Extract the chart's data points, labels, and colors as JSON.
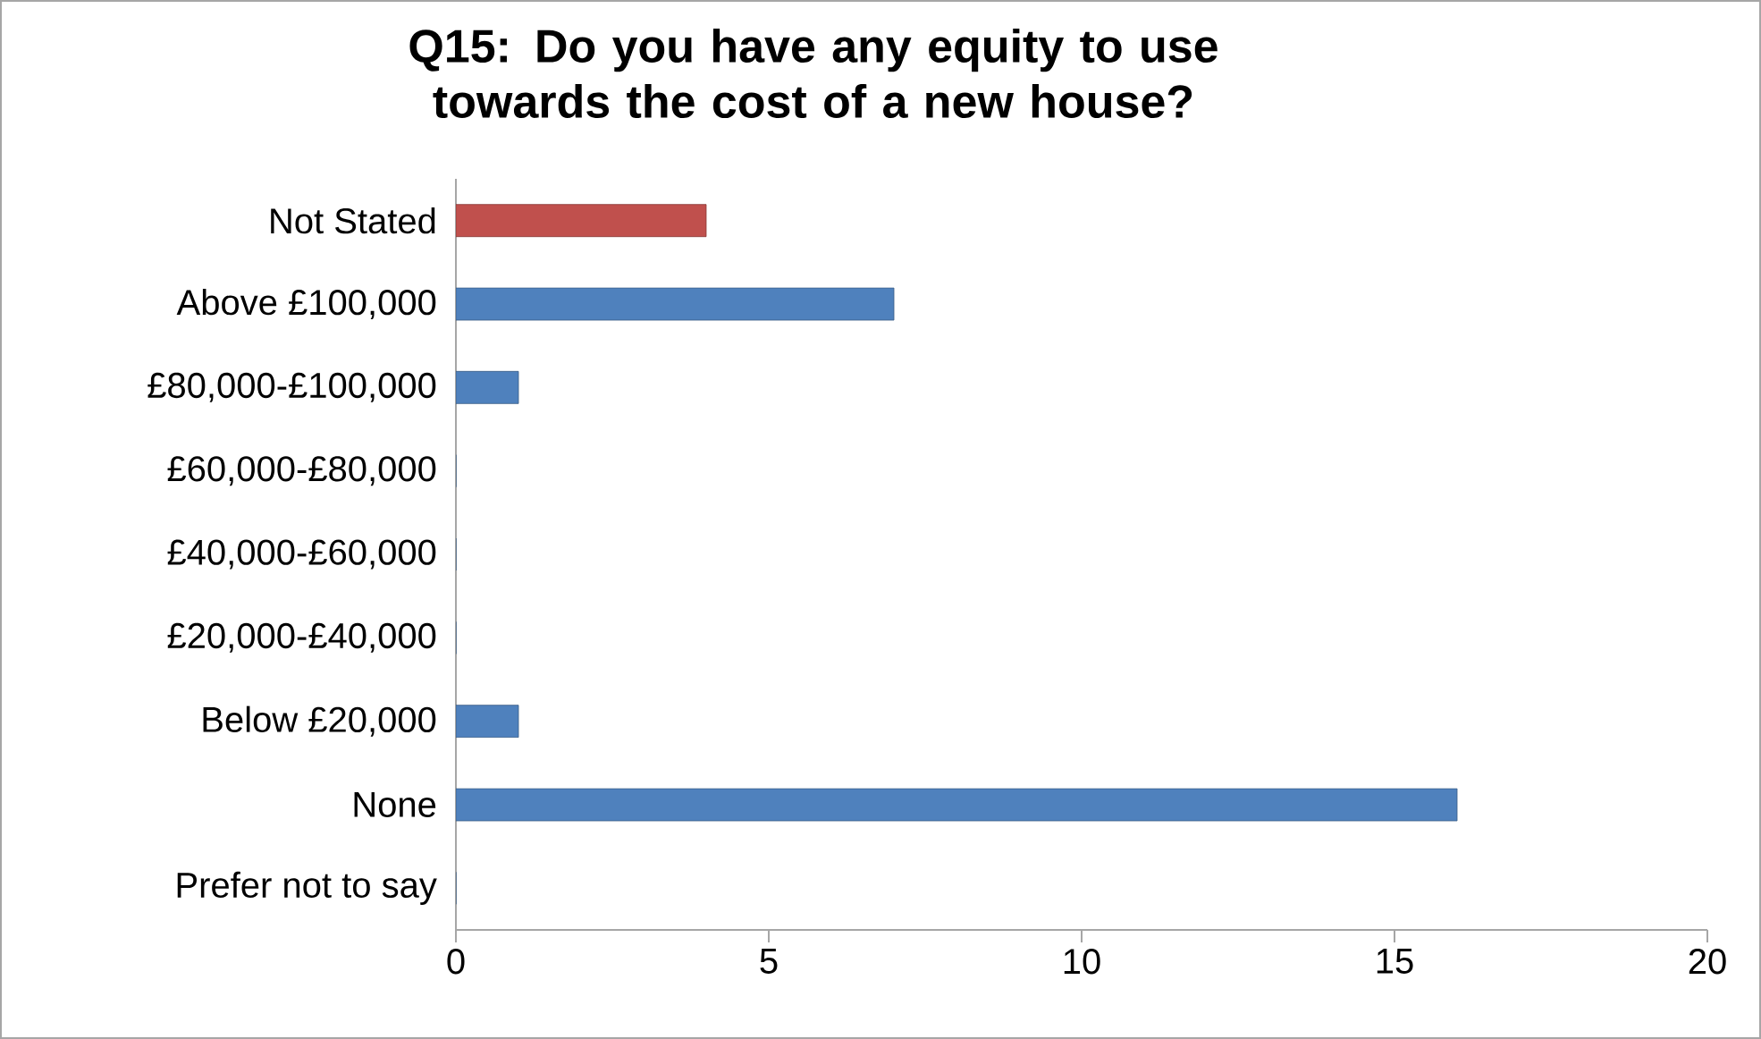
{
  "chart_data": {
    "type": "bar",
    "orientation": "horizontal",
    "title": "Q15: Do you have any equity to use towards the cost of a new house?",
    "categories": [
      "Not Stated",
      "Above £100,000",
      "£80,000-£100,000",
      "£60,000-£80,000",
      "£40,000-£60,000",
      "£20,000-£40,000",
      "Below £20,000",
      "None",
      "Prefer not to say"
    ],
    "values": [
      4,
      7,
      1,
      0,
      0,
      0,
      1,
      16,
      0
    ],
    "colors": [
      "#c0504d",
      "#4f81bd",
      "#4f81bd",
      "#4f81bd",
      "#4f81bd",
      "#4f81bd",
      "#4f81bd",
      "#4f81bd",
      "#4f81bd"
    ],
    "xlim": [
      0,
      20
    ],
    "xticks": [
      0,
      5,
      10,
      15,
      20
    ]
  }
}
